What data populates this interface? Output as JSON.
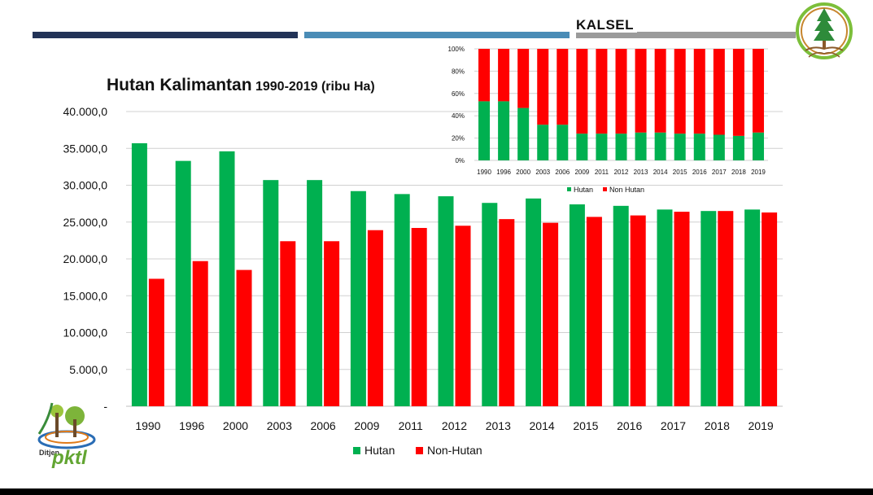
{
  "header": {
    "region": "KALSEL"
  },
  "logos": {
    "ministry": "ministry-tree-emblem",
    "ditjen_text": "Ditjen",
    "pktl_text": "pktl"
  },
  "chart_data": [
    {
      "type": "bar",
      "title": "Hutan Kalimantan",
      "subtitle": "1990-2019 (ribu Ha)",
      "xlabel": "",
      "ylabel": "",
      "categories": [
        "1990",
        "1996",
        "2000",
        "2003",
        "2006",
        "2009",
        "2011",
        "2012",
        "2013",
        "2014",
        "2015",
        "2016",
        "2017",
        "2018",
        "2019"
      ],
      "series": [
        {
          "name": "Hutan",
          "color": "#00b050",
          "values": [
            35700,
            33300,
            34600,
            30700,
            30700,
            29200,
            28800,
            28500,
            27600,
            28200,
            27400,
            27200,
            26700,
            26500,
            26700
          ]
        },
        {
          "name": "Non-Hutan",
          "color": "#ff0000",
          "values": [
            17300,
            19700,
            18500,
            22400,
            22400,
            23900,
            24200,
            24500,
            25400,
            24900,
            25700,
            25900,
            26400,
            26500,
            26300
          ]
        }
      ],
      "ylim": [
        0,
        40000
      ],
      "yticks": [
        "-",
        "5.000,0",
        "10.000,0",
        "15.000,0",
        "20.000,0",
        "25.000,0",
        "30.000,0",
        "35.000,0",
        "40.000,0"
      ],
      "grid": true,
      "legend": "bottom"
    },
    {
      "type": "bar",
      "stacked": "percent",
      "title": "",
      "xlabel": "",
      "ylabel": "",
      "categories": [
        "1990",
        "1996",
        "2000",
        "2003",
        "2006",
        "2009",
        "2011",
        "2012",
        "2013",
        "2014",
        "2015",
        "2016",
        "2017",
        "2018",
        "2019"
      ],
      "series": [
        {
          "name": "Hutan",
          "color": "#00b050",
          "values": [
            53,
            53,
            47,
            32,
            32,
            24,
            24,
            24,
            25,
            25,
            24,
            24,
            23,
            22,
            25
          ]
        },
        {
          "name": "Non Hutan",
          "color": "#ff0000",
          "values": [
            47,
            47,
            53,
            68,
            68,
            76,
            76,
            76,
            75,
            75,
            76,
            76,
            77,
            78,
            75
          ]
        }
      ],
      "ylim": [
        0,
        100
      ],
      "yticks": [
        "0%",
        "20%",
        "40%",
        "60%",
        "80%",
        "100%"
      ],
      "grid": true,
      "legend": "bottom"
    }
  ]
}
